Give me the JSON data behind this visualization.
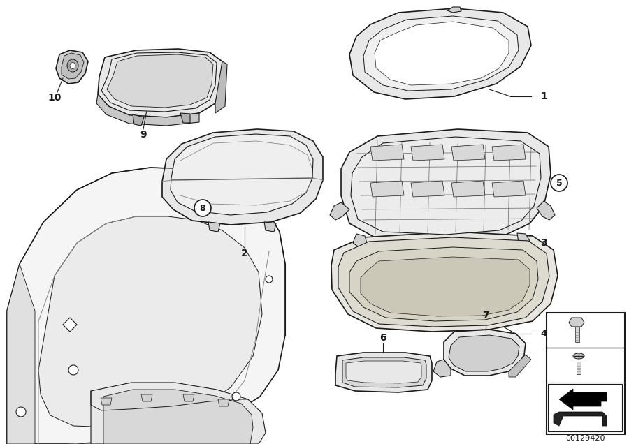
{
  "background_color": "#ffffff",
  "line_color": "#1a1a1a",
  "diagram_number": "00129420",
  "fig_width": 9.0,
  "fig_height": 6.36,
  "dpi": 100,
  "shade_light": "#e8e8e8",
  "shade_mid": "#d0d0d0",
  "shade_dark": "#b0b0b0",
  "shade_inner": "#c8c8c8"
}
